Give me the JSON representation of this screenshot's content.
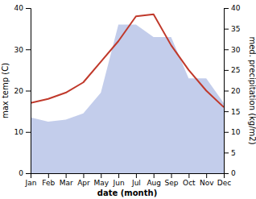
{
  "chart_data": {
    "type": "line",
    "xlabel": "date (month)",
    "ylabel": "max temp (C)",
    "y2label": "med. precipitation (kg/m2)",
    "categories": [
      "Jan",
      "Feb",
      "Mar",
      "Apr",
      "May",
      "Jun",
      "Jul",
      "Aug",
      "Sep",
      "Oct",
      "Nov",
      "Dec"
    ],
    "series": [
      {
        "type": "line",
        "color": "#c0392b",
        "values": [
          17.0,
          18.0,
          19.5,
          22.0,
          27.0,
          32.0,
          38.0,
          38.5,
          31.0,
          25.0,
          20.0,
          16.0
        ]
      },
      {
        "type": "area",
        "color": "#b8c4e8",
        "axis": "y2",
        "values": [
          13.5,
          12.5,
          13.0,
          14.5,
          19.5,
          36.0,
          36.0,
          33.0,
          33.0,
          23.0,
          23.0,
          17.0
        ]
      }
    ],
    "ylim": [
      0,
      40
    ],
    "yticks": [
      0,
      10,
      20,
      30,
      40
    ],
    "y2lim": [
      0,
      40
    ],
    "y2ticks": [
      0,
      5,
      10,
      15,
      20,
      25,
      30,
      35,
      40
    ],
    "grid": false
  }
}
